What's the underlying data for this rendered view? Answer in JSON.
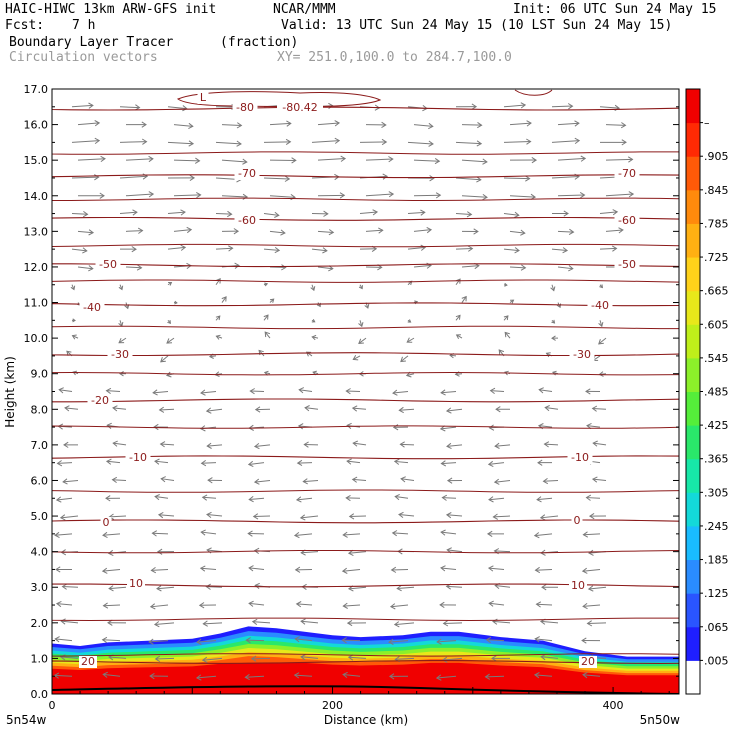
{
  "header": {
    "model_line": "HAIC-HIWC 13km ARW-GFS init",
    "org": "NCAR/MMM",
    "init": "Init: 06 UTC Sun 24 May 15",
    "fcst_label": "Fcst:",
    "fcst_value": "7 h",
    "valid": "Valid: 13 UTC Sun 24 May 15 (10 LST Sun 24 May 15)",
    "field": "Boundary Layer Tracer",
    "field_units": "(fraction)",
    "vectors": "Circulation vectors",
    "xy": "XY= 251.0,100.0 to 284.7,100.0"
  },
  "chart_data": {
    "type": "heatmap",
    "xlabel": "Distance (km)",
    "ylabel": "Height (km)",
    "xlim": [
      0,
      447
    ],
    "ylim": [
      0,
      17
    ],
    "x_ticks": [
      "0",
      "200",
      "400"
    ],
    "x_tick_values": [
      0,
      200,
      400
    ],
    "y_ticks": [
      "0.0",
      "1.0",
      "2.0",
      "3.0",
      "4.0",
      "5.0",
      "6.0",
      "7.0",
      "8.0",
      "9.0",
      "10.0",
      "11.0",
      "12.0",
      "13.0",
      "14.0",
      "15.0",
      "16.0",
      "17.0"
    ],
    "x_end_labels": {
      "left": "5n54w",
      "right": "5n50w"
    },
    "colorbar": {
      "labels": [
        ".005",
        ".065",
        ".125",
        ".185",
        ".245",
        ".305",
        ".365",
        ".425",
        ".485",
        ".545",
        ".605",
        ".665",
        ".725",
        ".785",
        ".845",
        ".905",
        "–"
      ],
      "colors": [
        "#ffffff",
        "#1f1fff",
        "#2a55ff",
        "#2a8cff",
        "#19bcff",
        "#13d9d9",
        "#17e8a8",
        "#2ae86a",
        "#55ee3a",
        "#8cf02a",
        "#bfef1a",
        "#e8e81a",
        "#ffd21a",
        "#ffb012",
        "#ff8a0c",
        "#ff5a08",
        "#ff2a04",
        "#f00000"
      ]
    },
    "tracer_top_km": [
      [
        0,
        1.42
      ],
      [
        20,
        1.35
      ],
      [
        40,
        1.45
      ],
      [
        70,
        1.5
      ],
      [
        100,
        1.55
      ],
      [
        120,
        1.7
      ],
      [
        140,
        1.9
      ],
      [
        160,
        1.85
      ],
      [
        180,
        1.75
      ],
      [
        200,
        1.65
      ],
      [
        220,
        1.6
      ],
      [
        250,
        1.65
      ],
      [
        270,
        1.75
      ],
      [
        290,
        1.75
      ],
      [
        320,
        1.6
      ],
      [
        350,
        1.5
      ],
      [
        380,
        1.2
      ],
      [
        410,
        1.05
      ],
      [
        447,
        1.05
      ]
    ],
    "contours": [
      {
        "label": "-80",
        "height_km": 16.45
      },
      {
        "label": "-80.42",
        "height_km": 16.45
      },
      {
        "label": "-70",
        "height_km": 14.55
      },
      {
        "label": "-60",
        "height_km": 13.35
      },
      {
        "label": "-50",
        "height_km": 12.05
      },
      {
        "label": "-40",
        "height_km": 10.95
      },
      {
        "label": "-30",
        "height_km": 9.55
      },
      {
        "label": "-20",
        "height_km": 8.25
      },
      {
        "label": "-10",
        "height_km": 6.65
      },
      {
        "label": "0",
        "height_km": 4.85
      },
      {
        "label": "10",
        "height_km": 3.05
      },
      {
        "label": "20",
        "height_km": 0.9
      },
      {
        "label": "L",
        "height_km": 16.7
      }
    ]
  }
}
